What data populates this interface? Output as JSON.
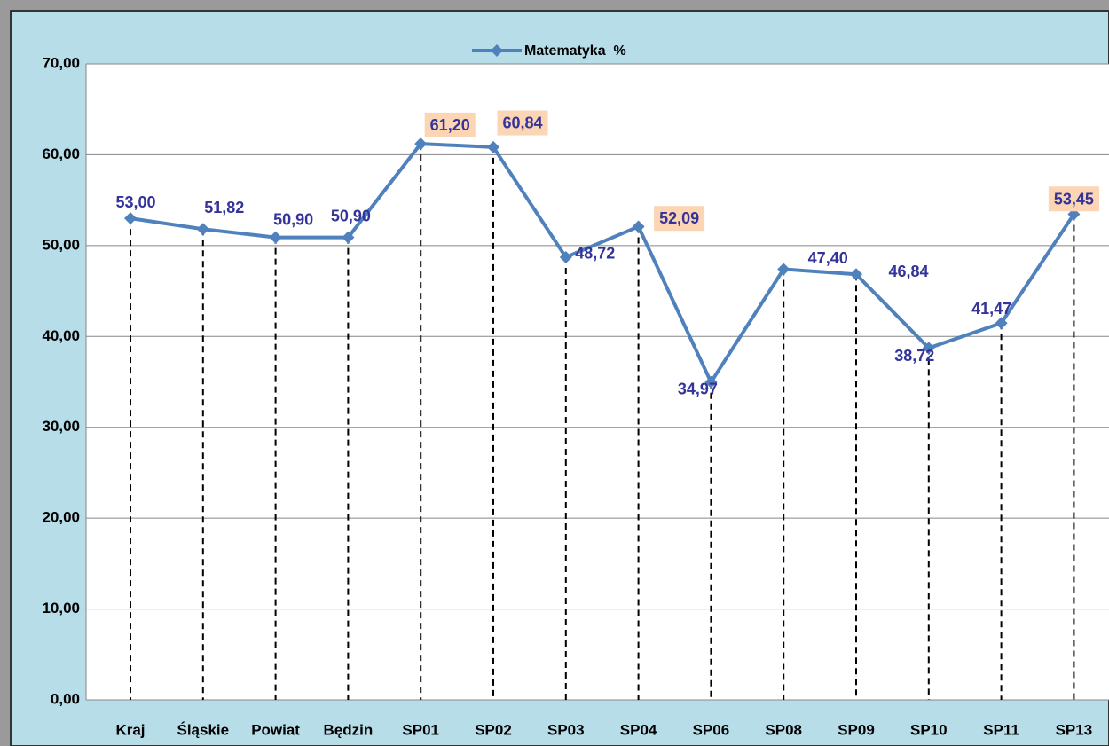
{
  "chart_data": {
    "type": "line",
    "legend": "top",
    "categories": [
      "Kraj",
      "Śląskie",
      "Powiat",
      "Będzin",
      "SP01",
      "SP02",
      "SP03",
      "SP04",
      "SP06",
      "SP08",
      "SP09",
      "SP10",
      "SP11",
      "SP13"
    ],
    "series": [
      {
        "name": "Matematyka  %",
        "color": "#4f81bd",
        "values": [
          53.0,
          51.82,
          50.9,
          50.9,
          61.2,
          60.84,
          48.72,
          52.09,
          34.97,
          47.4,
          46.84,
          38.72,
          41.47,
          53.45
        ],
        "value_labels": [
          "53,00",
          "51,82",
          "50,90",
          "50,90",
          "61,20",
          "60,84",
          "48,72",
          "52,09",
          "34,97",
          "47,40",
          "46,84",
          "38,72",
          "41,47",
          "53,45"
        ],
        "label_backgrounds": [
          null,
          null,
          null,
          null,
          "#fcd5b5",
          "#fcd5b5",
          null,
          "#fcd5b5",
          null,
          null,
          null,
          null,
          null,
          "#fcd5b5"
        ]
      }
    ],
    "ylim": [
      0,
      70
    ],
    "yticks": [
      {
        "value": 0,
        "label": "0,00"
      },
      {
        "value": 10,
        "label": "10,00"
      },
      {
        "value": 20,
        "label": "20,00"
      },
      {
        "value": 30,
        "label": "30,00"
      },
      {
        "value": 40,
        "label": "40,00"
      },
      {
        "value": 50,
        "label": "50,00"
      },
      {
        "value": 60,
        "label": "60,00"
      },
      {
        "value": 70,
        "label": "70,00"
      }
    ],
    "grid": true,
    "drop_lines": true
  }
}
